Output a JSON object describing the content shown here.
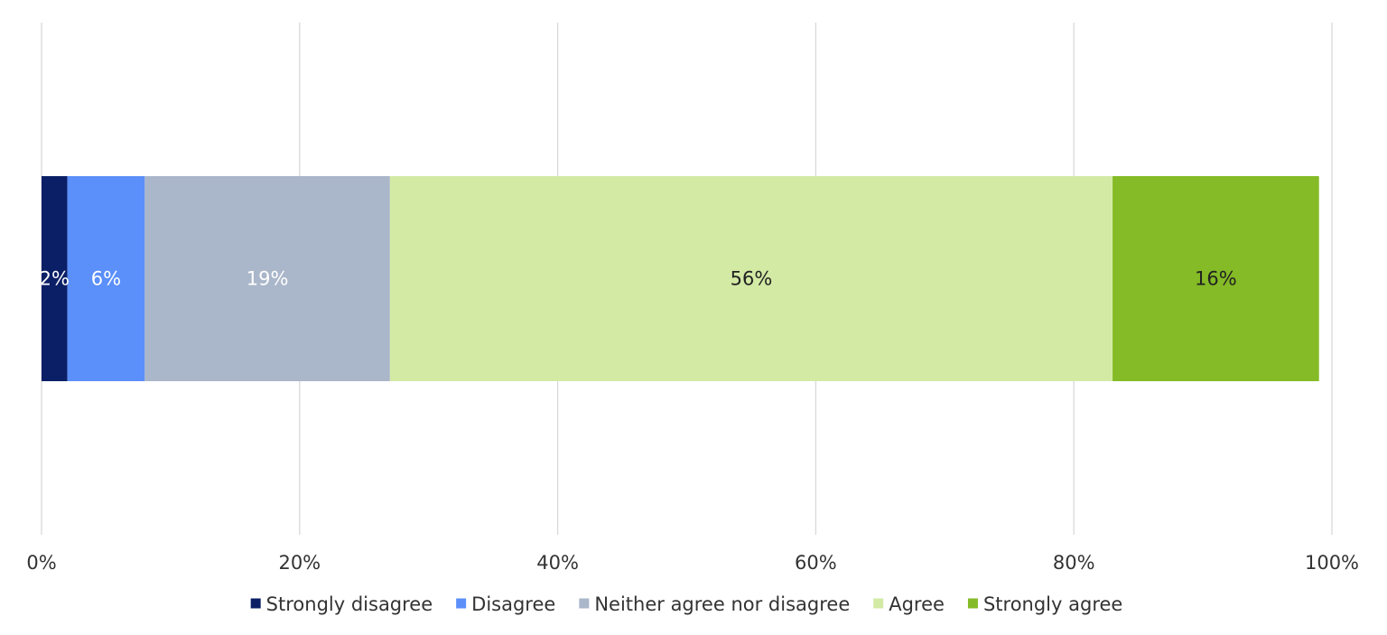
{
  "chart_data": {
    "type": "bar",
    "orientation": "horizontal",
    "stacked": true,
    "categories": [
      ""
    ],
    "series": [
      {
        "name": "Strongly disagree",
        "values": [
          2
        ],
        "label": "2%",
        "color": "#0b1f66",
        "label_color": "#ffffff"
      },
      {
        "name": "Disagree",
        "values": [
          6
        ],
        "label": "6%",
        "color": "#5b8ff9",
        "label_color": "#ffffff"
      },
      {
        "name": "Neither agree nor disagree",
        "values": [
          19
        ],
        "label": "19%",
        "color": "#aab6c9",
        "label_color": "#ffffff"
      },
      {
        "name": "Agree",
        "values": [
          56
        ],
        "label": "56%",
        "color": "#d3eaa5",
        "label_color": "#222222"
      },
      {
        "name": "Strongly agree",
        "values": [
          16
        ],
        "label": "16%",
        "color": "#84bb26",
        "label_color": "#222222"
      }
    ],
    "xlim": [
      0,
      100
    ],
    "xticks": [
      "0%",
      "20%",
      "40%",
      "60%",
      "80%",
      "100%"
    ],
    "grid": true,
    "legend_position": "bottom",
    "title": "",
    "xlabel": "",
    "ylabel": ""
  }
}
